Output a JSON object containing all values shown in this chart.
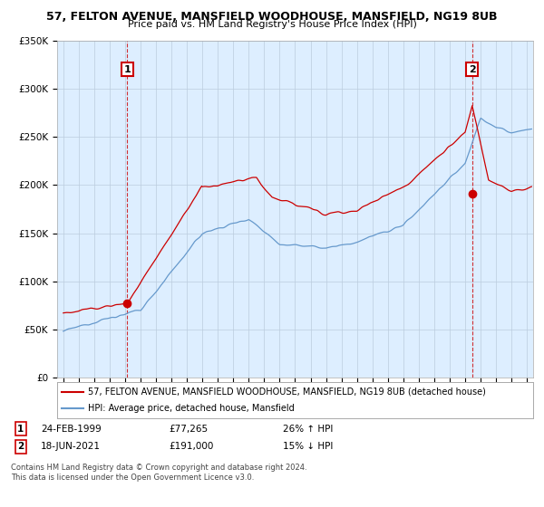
{
  "title1": "57, FELTON AVENUE, MANSFIELD WOODHOUSE, MANSFIELD, NG19 8UB",
  "title2": "Price paid vs. HM Land Registry's House Price Index (HPI)",
  "legend_line1": "57, FELTON AVENUE, MANSFIELD WOODHOUSE, MANSFIELD, NG19 8UB (detached house)",
  "legend_line2": "HPI: Average price, detached house, Mansfield",
  "annotation1_date": "24-FEB-1999",
  "annotation1_price": "£77,265",
  "annotation1_hpi": "26% ↑ HPI",
  "annotation2_date": "18-JUN-2021",
  "annotation2_price": "£191,000",
  "annotation2_hpi": "15% ↓ HPI",
  "copyright": "Contains HM Land Registry data © Crown copyright and database right 2024.\nThis data is licensed under the Open Government Licence v3.0.",
  "point1_x": 1999.14,
  "point1_y": 77265,
  "point2_x": 2021.46,
  "point2_y": 191000,
  "vline1_x": 1999.14,
  "vline2_x": 2021.46,
  "ylim": [
    0,
    350000
  ],
  "xlim_start": 1994.6,
  "xlim_end": 2025.4,
  "price_line_color": "#cc0000",
  "hpi_line_color": "#6699cc",
  "chart_bg_color": "#ddeeff",
  "background_color": "#ffffff",
  "grid_color": "#bbccdd"
}
